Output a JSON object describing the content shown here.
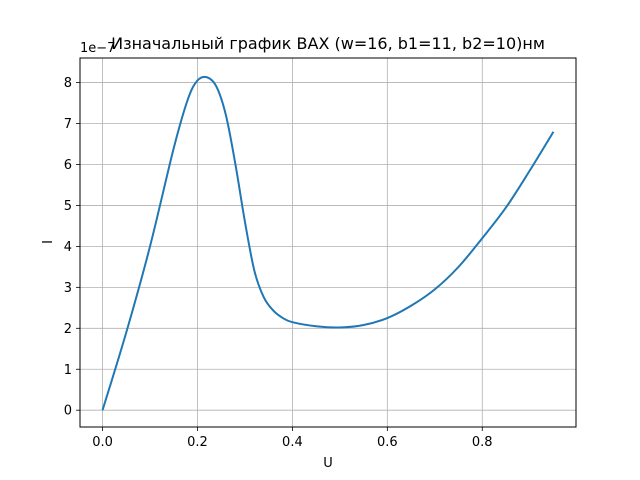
{
  "chart_data": {
    "type": "line",
    "title": "Изначальный график ВАХ (w=16, b1=11, b2=10)нм",
    "xlabel": "U",
    "ylabel": "I",
    "y_offset_label": "1e−7",
    "xlim": [
      -0.0475,
      0.9975
    ],
    "ylim": [
      -0.41,
      8.6
    ],
    "xticks": [
      0.0,
      0.2,
      0.4,
      0.6,
      0.8
    ],
    "xtick_labels": [
      "0.0",
      "0.2",
      "0.4",
      "0.6",
      "0.8"
    ],
    "yticks": [
      0,
      1,
      2,
      3,
      4,
      5,
      6,
      7,
      8
    ],
    "ytick_labels": [
      "0",
      "1",
      "2",
      "3",
      "4",
      "5",
      "6",
      "7",
      "8"
    ],
    "grid": true,
    "series": [
      {
        "color": "#1f77b4",
        "x": [
          0.0,
          0.05,
          0.1,
          0.15,
          0.18,
          0.2,
          0.22,
          0.24,
          0.26,
          0.28,
          0.3,
          0.32,
          0.34,
          0.36,
          0.38,
          0.4,
          0.45,
          0.5,
          0.55,
          0.6,
          0.65,
          0.7,
          0.75,
          0.8,
          0.85,
          0.9,
          0.95
        ],
        "y": [
          0.0,
          1.9,
          4.0,
          6.4,
          7.6,
          8.05,
          8.13,
          7.9,
          7.2,
          6.0,
          4.6,
          3.4,
          2.75,
          2.43,
          2.25,
          2.15,
          2.05,
          2.02,
          2.08,
          2.25,
          2.55,
          2.95,
          3.5,
          4.2,
          4.95,
          5.85,
          6.8
        ]
      }
    ]
  }
}
